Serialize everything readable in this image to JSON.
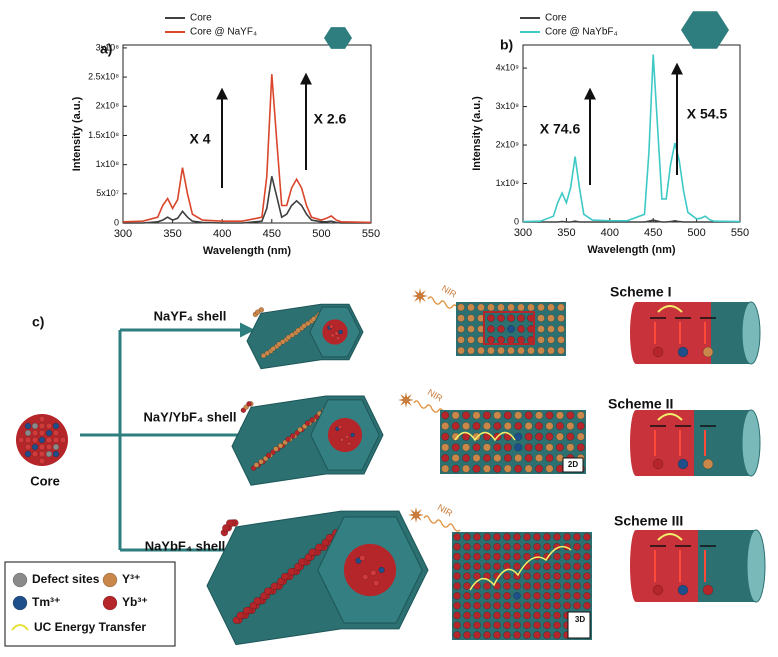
{
  "chart_data": [
    {
      "type": "line",
      "panel_label": "a)",
      "xlabel": "Wavelength (nm)",
      "ylabel": "Intensity (a.u.)",
      "x": [
        300,
        320,
        335,
        340,
        345,
        350,
        355,
        360,
        365,
        370,
        380,
        400,
        420,
        440,
        445,
        450,
        455,
        460,
        465,
        470,
        475,
        480,
        485,
        490,
        500,
        505,
        510,
        515,
        520,
        550
      ],
      "series": [
        {
          "name": "Core",
          "color": "#404040",
          "values": [
            0,
            0,
            2000000.0,
            5000000.0,
            10000000.0,
            5000000.0,
            8000000.0,
            20000000.0,
            10000000.0,
            3000000.0,
            1000000.0,
            0,
            0,
            3000000.0,
            25000000.0,
            80000000.0,
            45000000.0,
            10000000.0,
            15000000.0,
            30000000.0,
            38000000.0,
            30000000.0,
            15000000.0,
            5000000.0,
            2000000.0,
            2000000.0,
            3000000.0,
            1000000.0,
            0,
            0
          ]
        },
        {
          "name": "Core @ NaYF₄",
          "color": "#d9462b",
          "values": [
            2000000.0,
            3000000.0,
            10000000.0,
            30000000.0,
            42000000.0,
            25000000.0,
            40000000.0,
            95000000.0,
            50000000.0,
            15000000.0,
            5000000.0,
            3000000.0,
            3000000.0,
            10000000.0,
            80000000.0,
            255000000.0,
            140000000.0,
            30000000.0,
            30000000.0,
            60000000.0,
            75000000.0,
            60000000.0,
            30000000.0,
            10000000.0,
            5000000.0,
            8000000.0,
            12000000.0,
            5000000.0,
            2000000.0,
            1000000.0
          ]
        }
      ],
      "xlim": [
        300,
        550
      ],
      "xticks": [
        300,
        350,
        400,
        450,
        500,
        550
      ],
      "ylim": [
        0,
        305000000.0
      ],
      "yticks": [
        0,
        {
          "value": 50000000.0,
          "label": "5x10⁷"
        },
        {
          "value": 100000000.0,
          "label": "1x10⁸"
        },
        {
          "value": 150000000.0,
          "label": "1.5x10⁸"
        },
        {
          "value": 200000000.0,
          "label": "2x10⁸"
        },
        {
          "value": 250000000.0,
          "label": "2.5x10⁸"
        },
        {
          "value": 300000000.0,
          "label": "3x10⁸"
        }
      ],
      "annotations": [
        "X 4",
        "X 2.6"
      ]
    },
    {
      "type": "line",
      "panel_label": "b)",
      "xlabel": "Wavelength (nm)",
      "ylabel": "Intensity (a.u.)",
      "x": [
        300,
        320,
        335,
        340,
        345,
        350,
        355,
        360,
        365,
        370,
        380,
        400,
        420,
        440,
        445,
        450,
        455,
        460,
        465,
        470,
        475,
        480,
        485,
        490,
        500,
        505,
        510,
        515,
        520,
        550
      ],
      "series": [
        {
          "name": "Core",
          "color": "#404040",
          "values": [
            0,
            0,
            0,
            0,
            10000000.0,
            0,
            0,
            20000000.0,
            0,
            0,
            0,
            0,
            0,
            0,
            20000000.0,
            50000000.0,
            20000000.0,
            0,
            0,
            10000000.0,
            30000000.0,
            10000000.0,
            0,
            0,
            0,
            0,
            0,
            0,
            0,
            0
          ]
        },
        {
          "name": "Core @ NaYbF₄",
          "color": "#3ec9c6",
          "values": [
            10000000.0,
            20000000.0,
            150000000.0,
            500000000.0,
            750000000.0,
            500000000.0,
            900000000.0,
            1700000000.0,
            900000000.0,
            200000000.0,
            50000000.0,
            30000000.0,
            30000000.0,
            200000000.0,
            1800000000.0,
            4350000000.0,
            2500000000.0,
            600000000.0,
            600000000.0,
            1500000000.0,
            2050000000.0,
            1600000000.0,
            800000000.0,
            250000000.0,
            80000000.0,
            100000000.0,
            150000000.0,
            60000000.0,
            20000000.0,
            10000000.0
          ]
        }
      ],
      "xlim": [
        300,
        550
      ],
      "xticks": [
        300,
        350,
        400,
        450,
        500,
        550
      ],
      "ylim": [
        0,
        4600000000.0
      ],
      "yticks": [
        0,
        {
          "value": 1000000000.0,
          "label": "1x10⁹"
        },
        {
          "value": 2000000000.0,
          "label": "2x10⁹"
        },
        {
          "value": 3000000000.0,
          "label": "3x10⁹"
        },
        {
          "value": 4000000000.0,
          "label": "4x10⁹"
        }
      ],
      "annotations": [
        "X 74.6",
        "X 54.5"
      ]
    }
  ],
  "diagram": {
    "panel_label": "c)",
    "core_label": "Core",
    "shells": [
      "NaYF₄ shell",
      "NaY/YbF₄ shell",
      "NaYbF₄ shell"
    ],
    "nir_labels": [
      "NIR",
      "NIR",
      "NIR"
    ],
    "schemes": [
      "Scheme I",
      "Scheme II",
      "Scheme III"
    ],
    "axis_tags": [
      "2D",
      "3D"
    ],
    "legend": [
      "Defect sites",
      "Y³⁺",
      "Tm³⁺",
      "Yb³⁺",
      "UC Energy Transfer"
    ]
  }
}
